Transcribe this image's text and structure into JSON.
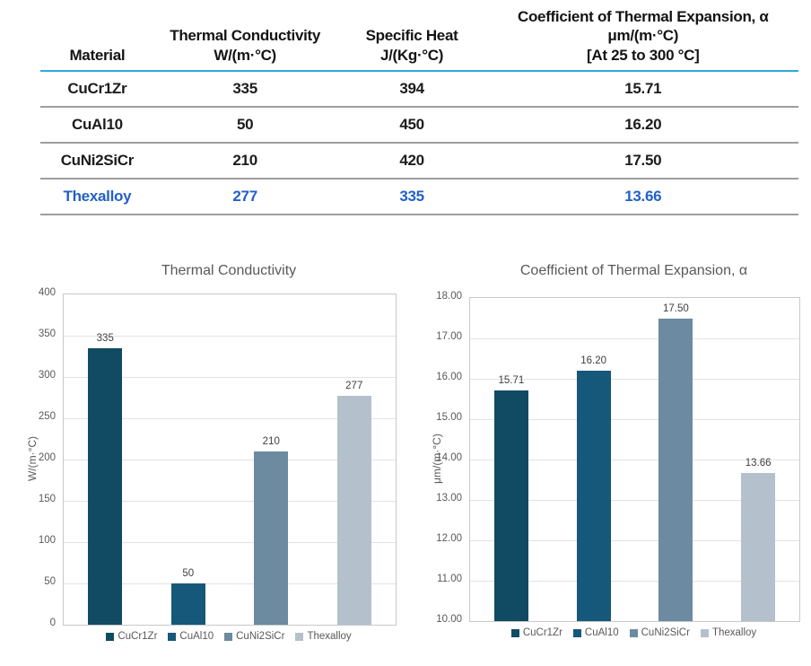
{
  "colors": {
    "header_underline": "#2FA9DC",
    "row_separator": "#9E9E9E",
    "highlight_text": "#2160C8",
    "chart_text": "#595959",
    "data_label": "#404040",
    "series": [
      "#114A63",
      "#16587A",
      "#6C8AA0",
      "#B4C0CB"
    ]
  },
  "table": {
    "columns": [
      {
        "key": "material",
        "lines": [
          "Material"
        ]
      },
      {
        "key": "thermal-conductivity",
        "lines": [
          "Thermal Conductivity",
          "W/(m·°C)"
        ]
      },
      {
        "key": "specific-heat",
        "lines": [
          "Specific Heat",
          "J/(Kg·°C)"
        ]
      },
      {
        "key": "cte",
        "lines": [
          "Coefficient of Thermal Expansion, α",
          "μm/(m·°C)",
          "[At 25 to 300 °C]"
        ]
      }
    ],
    "rows": [
      {
        "material": "CuCr1Zr",
        "values": [
          "335",
          "394",
          "15.71"
        ],
        "highlight": false
      },
      {
        "material": "CuAl10",
        "values": [
          "50",
          "450",
          "16.20"
        ],
        "highlight": false
      },
      {
        "material": "CuNi2SiCr",
        "values": [
          "210",
          "420",
          "17.50"
        ],
        "highlight": false
      },
      {
        "material": "Thexalloy",
        "values": [
          "277",
          "335",
          "13.66"
        ],
        "highlight": true
      }
    ]
  },
  "chart_data": [
    {
      "type": "bar",
      "title": "Thermal Conductivity",
      "xlabel": "",
      "ylabel": "W/(m·°C)",
      "categories": [
        "CuCr1Zr",
        "CuAl10",
        "CuNi2SiCr",
        "Thexalloy"
      ],
      "values": [
        335,
        50,
        210,
        277
      ],
      "value_labels": [
        "335",
        "50",
        "210",
        "277"
      ],
      "ylim": [
        0,
        400
      ],
      "ytick_step": 50,
      "ytick_labels": [
        "0",
        "50",
        "100",
        "150",
        "200",
        "250",
        "300",
        "350",
        "400"
      ],
      "grid": true,
      "legend_position": "bottom",
      "bar_colors": [
        "#114A63",
        "#16587A",
        "#6C8AA0",
        "#B4C0CB"
      ]
    },
    {
      "type": "bar",
      "title": "Coefficient of Thermal Expansion, α",
      "xlabel": "",
      "ylabel": "μm/(m·°C)",
      "categories": [
        "CuCr1Zr",
        "CuAl10",
        "CuNi2SiCr",
        "Thexalloy"
      ],
      "values": [
        15.71,
        16.2,
        17.5,
        13.66
      ],
      "value_labels": [
        "15.71",
        "16.20",
        "17.50",
        "13.66"
      ],
      "ylim": [
        10,
        18
      ],
      "ytick_step": 1,
      "ytick_labels": [
        "10.00",
        "11.00",
        "12.00",
        "13.00",
        "14.00",
        "15.00",
        "16.00",
        "17.00",
        "18.00"
      ],
      "grid": true,
      "legend_position": "bottom",
      "bar_colors": [
        "#114A63",
        "#16587A",
        "#6C8AA0",
        "#B4C0CB"
      ]
    }
  ]
}
